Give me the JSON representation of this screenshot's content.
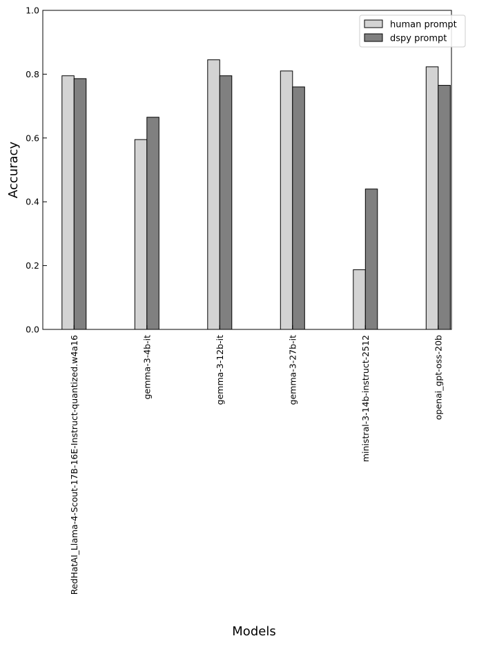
{
  "chart_data": {
    "type": "bar",
    "xlabel": "Models",
    "ylabel": "Accuracy",
    "ylim": [
      0,
      1.0
    ],
    "yticks": [
      "0.0",
      "0.2",
      "0.4",
      "0.6",
      "0.8",
      "1.0"
    ],
    "grid": false,
    "legend_position": "top-right",
    "categories": [
      "RedHatAI_Llama-4-Scout-17B-16E-Instruct-quantized.w4a16",
      "gemma-3-4b-it",
      "gemma-3-12b-it",
      "gemma-3-27b-it",
      "ministral-3-14b-instruct-2512",
      "openai_gpt-oss-20b"
    ],
    "series": [
      {
        "name": "human prompt",
        "color": "#d3d3d3",
        "values": [
          0.795,
          0.595,
          0.845,
          0.81,
          0.187,
          0.823
        ]
      },
      {
        "name": "dspy prompt",
        "color": "#808080",
        "values": [
          0.786,
          0.665,
          0.795,
          0.76,
          0.44,
          0.765
        ]
      }
    ]
  }
}
